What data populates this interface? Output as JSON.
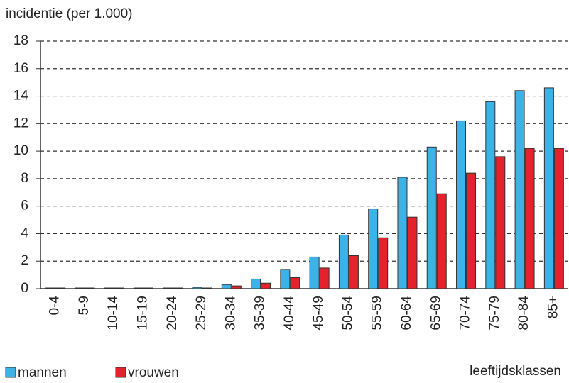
{
  "chart_data": {
    "type": "bar",
    "title": "incidentie (per 1.000)",
    "x_label": "leeftijdsklassen",
    "categories": [
      "0-4",
      "5-9",
      "10-14",
      "15-19",
      "20-24",
      "25-29",
      "30-34",
      "35-39",
      "40-44",
      "45-49",
      "50-54",
      "55-59",
      "60-64",
      "65-69",
      "70-74",
      "75-79",
      "80-84",
      "85+"
    ],
    "series": [
      {
        "name": "mannen",
        "color": "#3db2e6",
        "values": [
          0.05,
          0.05,
          0.05,
          0.05,
          0.05,
          0.1,
          0.3,
          0.7,
          1.4,
          2.3,
          3.9,
          5.8,
          8.1,
          10.3,
          12.2,
          13.6,
          14.4,
          14.6
        ]
      },
      {
        "name": "vrouwen",
        "color": "#e3222b",
        "values": [
          0.05,
          0.05,
          0.05,
          0.05,
          0.05,
          0.05,
          0.2,
          0.4,
          0.8,
          1.5,
          2.4,
          3.7,
          5.2,
          6.9,
          8.4,
          9.6,
          10.2,
          10.2
        ]
      }
    ],
    "ylim": [
      0,
      18
    ],
    "yticks": [
      0,
      2,
      4,
      6,
      8,
      10,
      12,
      14,
      16,
      18
    ],
    "grid": true
  }
}
